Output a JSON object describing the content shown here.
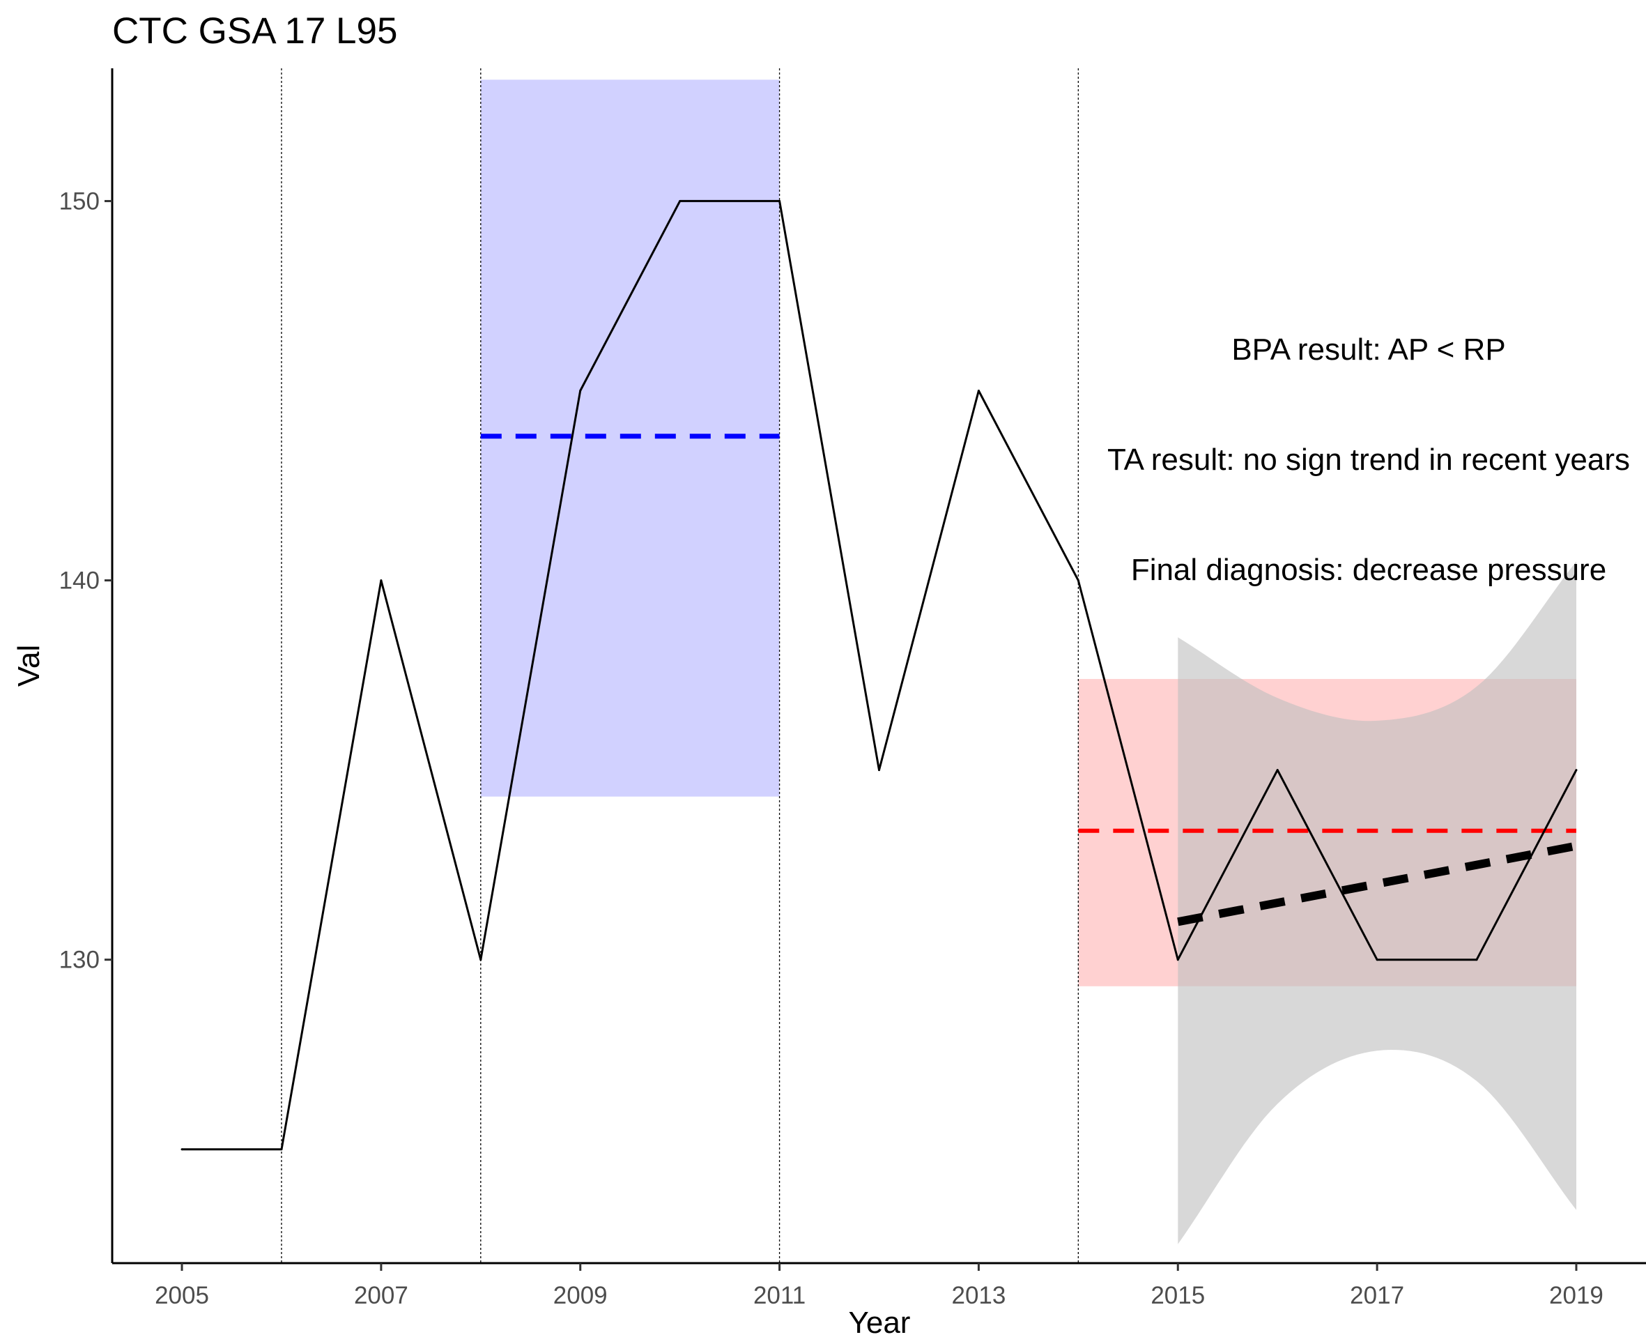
{
  "chart_data": {
    "type": "line",
    "title": "CTC GSA 17 L95",
    "xlabel": "Year",
    "ylabel": "Val",
    "xlim": [
      2004.3,
      2019.7
    ],
    "ylim": [
      122,
      153.5
    ],
    "x_ticks": [
      2005,
      2007,
      2009,
      2011,
      2013,
      2015,
      2017,
      2019
    ],
    "y_ticks": [
      130,
      140,
      150
    ],
    "x_tick_labels": [
      "2005",
      "2007",
      "2009",
      "2011",
      "2013",
      "2015",
      "2017",
      "2019"
    ],
    "y_tick_labels": [
      "130",
      "140",
      "150"
    ],
    "grid": false,
    "series": [
      {
        "x": [
          2005,
          2006,
          2007,
          2008,
          2009,
          2010,
          2011,
          2012,
          2013,
          2014,
          2015,
          2016,
          2017,
          2018,
          2019
        ],
        "values": [
          125,
          125,
          140,
          130,
          145,
          150,
          150,
          135,
          145,
          140,
          130,
          135,
          130,
          130,
          135
        ],
        "color": "#000000"
      }
    ],
    "vertical_lines": [
      2006,
      2008,
      2011,
      2014
    ],
    "reference_period": {
      "x_start": 2008,
      "x_end": 2011,
      "band": [
        134.3,
        153.2
      ],
      "mean": 143.8,
      "color": "#0000ff"
    },
    "assessment_period": {
      "x_start": 2014,
      "x_end": 2019,
      "band": [
        129.3,
        137.4
      ],
      "mean": 133.4,
      "color": "#ff0000"
    },
    "trend": {
      "x": [
        2015,
        2016,
        2017,
        2018,
        2019
      ],
      "fit": [
        131.0,
        131.5,
        132.0,
        132.5,
        133.0
      ],
      "ci_lower": [
        122.5,
        126.2,
        127.6,
        126.8,
        123.4
      ],
      "ci_upper": [
        138.5,
        136.9,
        136.3,
        137.2,
        140.5
      ],
      "color": "#000000",
      "ci_color": "#bebebe"
    },
    "annotations": [
      "BPA result: AP < RP",
      "TA result: no sign trend in recent years",
      "Final diagnosis: decrease pressure"
    ]
  }
}
